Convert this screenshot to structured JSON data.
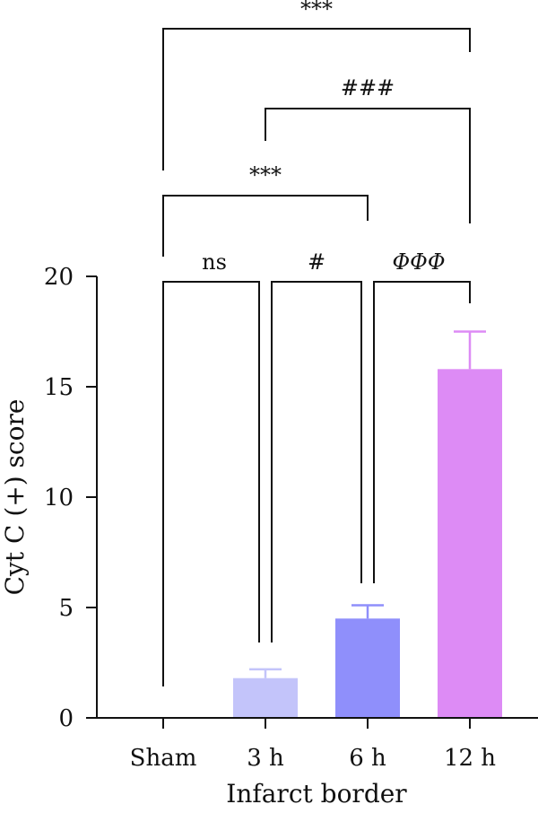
{
  "chart_data": {
    "type": "bar",
    "categories": [
      "Sham",
      "3 h",
      "6 h",
      "12 h"
    ],
    "values": [
      0,
      1.8,
      4.5,
      15.8
    ],
    "errors": [
      0,
      0.4,
      0.6,
      1.7
    ],
    "colors": [
      "#ffffff",
      "#c3c4fa",
      "#8f8ffb",
      "#dd8bf5"
    ],
    "xlabel": "Infarct border",
    "ylabel": "Cyt C (+) score",
    "ylim": [
      0,
      20
    ],
    "yticks": [
      0,
      5,
      10,
      15,
      20
    ],
    "grid": false,
    "significance": [
      {
        "from": 0,
        "to": 1,
        "label": "ns",
        "level": 0
      },
      {
        "from": 1,
        "to": 2,
        "label": "#",
        "level": 0
      },
      {
        "from": 2,
        "to": 3,
        "label": "ΦΦΦ",
        "level": 0,
        "italic": true
      },
      {
        "from": 0,
        "to": 2,
        "label": "***",
        "level": 1
      },
      {
        "from": 1,
        "to": 3,
        "label": "###",
        "level": 2
      },
      {
        "from": 0,
        "to": 3,
        "label": "***",
        "level": 3
      }
    ]
  }
}
